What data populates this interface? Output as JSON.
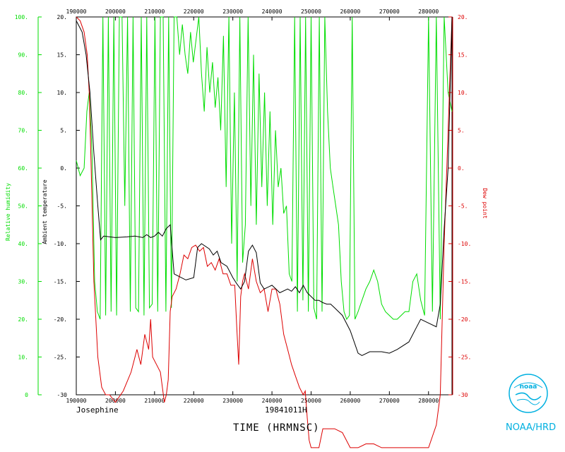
{
  "chart_data": {
    "type": "line",
    "xlabel": "TIME (HRMNSC)",
    "flight_name": "Josephine",
    "flight_date": "19841011H",
    "x_ticks": [
      "190000",
      "200000",
      "210000",
      "220000",
      "230000",
      "240000",
      "250000",
      "260000",
      "270000",
      "280000"
    ],
    "xlim": [
      190000,
      286000
    ],
    "y_axes": [
      {
        "name": "Relative humidity",
        "color": "#00dd00",
        "ylim": [
          0,
          100
        ],
        "ticks": [
          "0",
          "10.",
          "20.",
          "30.",
          "40.",
          "50.",
          "60.",
          "70.",
          "80.",
          "90.",
          "100."
        ]
      },
      {
        "name": "Ambient temperature",
        "color": "#000000",
        "ylim": [
          -30,
          20
        ],
        "ticks": [
          "-30",
          "-25.",
          "-20.",
          "-15.",
          "-10.",
          "-5.",
          "0.",
          "5.",
          "10.",
          "15.",
          "20."
        ]
      },
      {
        "name": "Dew point",
        "color": "#dd0000",
        "ylim": [
          -30,
          20
        ],
        "ticks": [
          "-30",
          "-25.",
          "-20.",
          "-15.",
          "-10.",
          "-5.",
          "0.",
          "5.",
          "10.",
          "15.",
          "20."
        ]
      }
    ],
    "series": [
      {
        "name": "Ambient temperature",
        "color": "#000000",
        "axis": 1,
        "x": [
          190000,
          191500,
          192500,
          193500,
          194500,
          195500,
          196200,
          197000,
          200000,
          203000,
          205000,
          207000,
          208000,
          209000,
          210000,
          211000,
          212000,
          213000,
          214000,
          215000,
          218000,
          220000,
          221000,
          222000,
          224000,
          225000,
          226000,
          227000,
          228500,
          230000,
          231000,
          232000,
          233000,
          234000,
          235000,
          236000,
          237000,
          238000,
          240000,
          242000,
          244000,
          245000,
          246000,
          247000,
          248000,
          249000,
          250000,
          251000,
          252000,
          253000,
          254000,
          255000,
          256000,
          258000,
          260000,
          262000,
          263000,
          265000,
          268000,
          270000,
          272000,
          275000,
          277000,
          278000,
          280000,
          282000,
          283000,
          284000,
          285000,
          286000
        ],
        "y": [
          19.5,
          18,
          15,
          10,
          2,
          -5,
          -9.5,
          -9,
          -9.2,
          -9.1,
          -9,
          -9.2,
          -8.8,
          -9.2,
          -9,
          -8.5,
          -9,
          -8,
          -7.5,
          -14,
          -14.8,
          -14.5,
          -10.5,
          -10,
          -10.7,
          -11.5,
          -11,
          -12.5,
          -13,
          -14.5,
          -15.3,
          -16,
          -15,
          -11,
          -10.2,
          -11.2,
          -15.2,
          -16,
          -15.5,
          -16.5,
          -16,
          -16.3,
          -15.7,
          -16.5,
          -15.5,
          -16.5,
          -17,
          -17.5,
          -17.5,
          -17.8,
          -18,
          -18,
          -18.5,
          -19.5,
          -21.5,
          -24.5,
          -24.8,
          -24.3,
          -24.3,
          -24.5,
          -24,
          -23,
          -21,
          -20,
          -20.5,
          -21,
          -18,
          -8,
          0,
          20
        ]
      },
      {
        "name": "Dew point",
        "color": "#dd0000",
        "axis": 2,
        "x": [
          190000,
          191000,
          192000,
          192800,
          193300,
          193800,
          194500,
          195500,
          196500,
          197500,
          198500,
          200000,
          202000,
          204000,
          205500,
          206500,
          207500,
          208500,
          209000,
          209500,
          210500,
          211500,
          212500,
          213000,
          213500,
          214000,
          214500,
          215500,
          216500,
          217500,
          218500,
          219500,
          220500,
          221500,
          222500,
          223500,
          224500,
          225500,
          226500,
          227500,
          228500,
          229500,
          230500,
          231000,
          231500,
          232000,
          232500,
          233000,
          234000,
          235000,
          236000,
          237000,
          238000,
          239000,
          240000,
          241000,
          242000,
          243000,
          244000,
          245000,
          246000,
          247000,
          248000,
          248500,
          249000,
          249500,
          250000,
          251000,
          252000,
          253000,
          254000,
          256000,
          258000,
          260000,
          262000,
          264000,
          266000,
          268000,
          270000,
          272000,
          274000,
          276000,
          278000,
          280000,
          282000,
          283000,
          284000,
          285000,
          286000
        ],
        "y": [
          20,
          19.5,
          18,
          15,
          10,
          0,
          -15,
          -25,
          -29,
          -30,
          -30,
          -31,
          -29.5,
          -27,
          -24,
          -26,
          -22,
          -24,
          -20,
          -25,
          -26,
          -27,
          -31,
          -30,
          -28,
          -19,
          -17,
          -16,
          -14,
          -11.5,
          -12,
          -10.5,
          -10.2,
          -11,
          -10.5,
          -13,
          -12.5,
          -13.5,
          -12,
          -14,
          -14,
          -15.5,
          -15.5,
          -21,
          -26,
          -17,
          -15,
          -14,
          -16,
          -12,
          -15,
          -16.5,
          -16,
          -19,
          -16,
          -16,
          -18,
          -22,
          -24,
          -26,
          -27.5,
          -29,
          -30,
          -29.5,
          -33,
          -36,
          -37,
          -37,
          -37,
          -34.5,
          -34.5,
          -34.5,
          -35,
          -37,
          -37,
          -36.5,
          -36.5,
          -37,
          -37,
          -37,
          -37,
          -37,
          -37,
          -37,
          -34,
          -30,
          -10,
          5,
          20
        ]
      },
      {
        "name": "Relative humidity",
        "color": "#00dd00",
        "axis": 0,
        "x": [
          190000,
          191000,
          192000,
          192700,
          193300,
          194000,
          194700,
          195400,
          196100,
          196800,
          197500,
          198200,
          198900,
          199600,
          200300,
          201000,
          201700,
          202400,
          203100,
          203800,
          204500,
          205200,
          205900,
          206600,
          207300,
          208000,
          208700,
          209400,
          210100,
          210800,
          211500,
          212200,
          212900,
          213600,
          214300,
          215000,
          215700,
          216400,
          217100,
          217800,
          218500,
          219200,
          219900,
          220600,
          221300,
          222000,
          222700,
          223400,
          224100,
          224800,
          225500,
          226200,
          226900,
          227600,
          228300,
          229000,
          229700,
          230400,
          231100,
          231800,
          232500,
          233200,
          233900,
          234600,
          235300,
          236000,
          236700,
          237400,
          238100,
          238800,
          239500,
          240200,
          240900,
          241600,
          242300,
          243000,
          243700,
          244400,
          245100,
          245800,
          246500,
          247200,
          247900,
          248600,
          249300,
          250000,
          250700,
          251400,
          252100,
          252800,
          253500,
          254200,
          254900,
          255600,
          256300,
          257000,
          257700,
          258400,
          259100,
          259800,
          260500,
          261200,
          262000,
          263000,
          264000,
          265000,
          266000,
          267000,
          268000,
          269000,
          270000,
          271000,
          272000,
          273000,
          274000,
          275000,
          276000,
          277000,
          278000,
          279000,
          280000,
          281000,
          282000,
          283000,
          284000,
          285000,
          286000
        ],
        "y": [
          62,
          58,
          60,
          75,
          80,
          65,
          30,
          22,
          20,
          100,
          21,
          100,
          22,
          100,
          21,
          100,
          100,
          50,
          100,
          22,
          100,
          23,
          22,
          100,
          21,
          100,
          23,
          24,
          100,
          22,
          100,
          100,
          22,
          100,
          23,
          100,
          100,
          90,
          98,
          90,
          85,
          96,
          88,
          94,
          100,
          85,
          75,
          92,
          80,
          88,
          76,
          84,
          70,
          95,
          55,
          100,
          40,
          80,
          30,
          100,
          35,
          45,
          100,
          50,
          90,
          45,
          85,
          55,
          80,
          50,
          75,
          45,
          70,
          55,
          60,
          48,
          50,
          32,
          30,
          100,
          22,
          100,
          25,
          100,
          22,
          100,
          23,
          20,
          100,
          22,
          100,
          75,
          60,
          55,
          50,
          45,
          30,
          22,
          20,
          21,
          100,
          20,
          22,
          25,
          28,
          30,
          33,
          30,
          24,
          22,
          21,
          20,
          20,
          21,
          22,
          22,
          30,
          32,
          25,
          21,
          100,
          22,
          100,
          20,
          100,
          80,
          75
        ]
      }
    ]
  },
  "logo_caption": "NOAA/HRD",
  "logo_text": "noaa"
}
